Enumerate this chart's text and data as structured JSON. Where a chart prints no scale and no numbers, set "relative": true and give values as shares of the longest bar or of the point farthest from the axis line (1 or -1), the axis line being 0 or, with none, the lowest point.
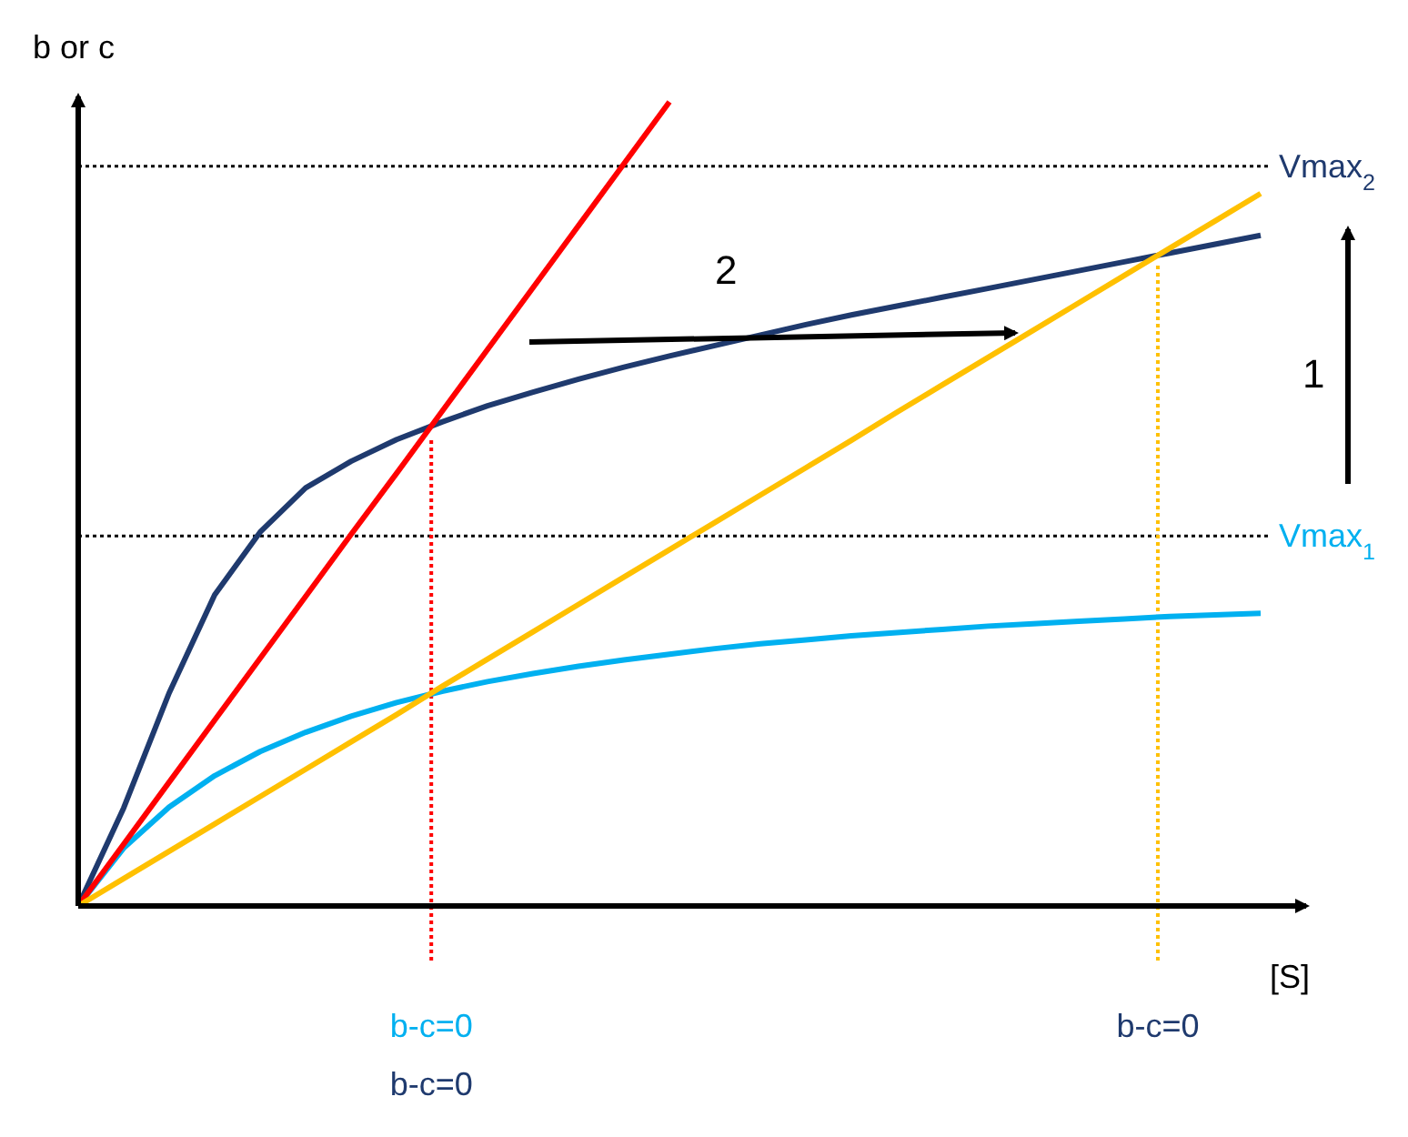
{
  "chart_data": {
    "type": "line",
    "relative": true,
    "xlabel": "[S]",
    "ylabel": "b or c",
    "categories": [
      null,
      null,
      null,
      null,
      null,
      null,
      null,
      null,
      null,
      null,
      null,
      null,
      null,
      null,
      null,
      null,
      null,
      null,
      null,
      null,
      null,
      null,
      null,
      null,
      null,
      null,
      null
    ],
    "series": [
      {
        "color": "#1f3a6e",
        "values": [
          0,
          0.122,
          0.265,
          0.387,
          0.465,
          0.52,
          0.553,
          0.58,
          0.602,
          0.622,
          0.639,
          0.655,
          0.67,
          0.684,
          0.697,
          0.71,
          0.723,
          0.735,
          0.746,
          0.757,
          0.768,
          0.779,
          0.79,
          0.801,
          0.812,
          0.823,
          0.834
        ]
      },
      {
        "color": "#00b0f0",
        "values": [
          0,
          0.072,
          0.123,
          0.162,
          0.192,
          0.216,
          0.236,
          0.253,
          0.267,
          0.279,
          0.289,
          0.298,
          0.306,
          0.313,
          0.32,
          0.326,
          0.331,
          0.336,
          0.34,
          0.344,
          0.348,
          0.351,
          0.354,
          0.357,
          0.36,
          0.362,
          0.364
        ]
      },
      {
        "color": "#ff0000",
        "values": [
          0,
          0.077,
          0.154,
          0.231,
          0.308,
          0.385,
          0.462,
          0.538,
          0.615,
          0.692,
          0.769,
          0.846,
          0.923,
          1,
          null,
          null,
          null,
          null,
          null,
          null,
          null,
          null,
          null,
          null,
          null,
          null,
          null
        ]
      },
      {
        "color": "#ffc000",
        "values": [
          0,
          0.034,
          0.068,
          0.102,
          0.136,
          0.17,
          0.204,
          0.238,
          0.273,
          0.307,
          0.341,
          0.375,
          0.409,
          0.443,
          0.477,
          0.511,
          0.545,
          0.579,
          0.614,
          0.648,
          0.682,
          0.716,
          0.75,
          0.784,
          0.818,
          0.852,
          0.886
        ]
      }
    ],
    "ref_lines": [
      {
        "axis": "y",
        "value": 0.92,
        "label": "Vmax$_{2}$",
        "color": "#000000",
        "line_style": "dotted"
      },
      {
        "axis": "y",
        "value": 0.46,
        "label": "Vmax$_{1}$",
        "color": "#000000",
        "line_style": "dotted"
      }
    ],
    "annotations": [
      "b-c=0",
      "b-c=0",
      "b-c=0",
      "1",
      "2"
    ]
  }
}
